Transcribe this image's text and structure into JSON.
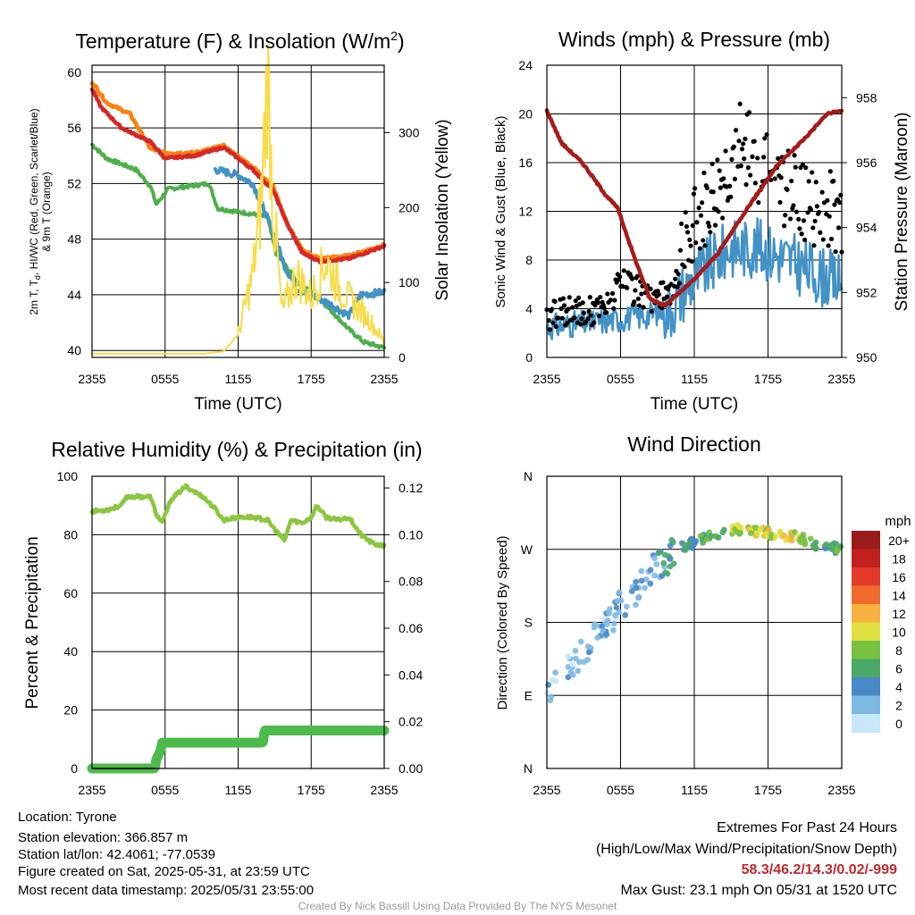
{
  "charts": {
    "temp": {
      "title": "Temperature (F) & Insolation (W/m",
      "title_sup": "2",
      "title_end": ")",
      "ylabel_lines": [
        "2m T, T",
        "d",
        ", HI/WC (Red, Green, Scarlet/Blue)",
        "& 9m T (Orange)"
      ],
      "y2label": "Solar Insolation (Yellow)",
      "xlabel": "Time (UTC)",
      "y_ticks": [
        "40",
        "44",
        "48",
        "52",
        "56",
        "60"
      ],
      "y2_ticks": [
        "0",
        "100",
        "200",
        "300"
      ]
    },
    "winds": {
      "title": "Winds (mph) & Pressure (mb)",
      "ylabel": "Sonic Wind & Gust (Blue, Black)",
      "y2label": "Station Pressure (Maroon)",
      "xlabel": "Time (UTC)",
      "y_ticks": [
        "0",
        "4",
        "8",
        "12",
        "16",
        "20",
        "24"
      ],
      "y2_ticks": [
        "950",
        "952",
        "954",
        "956",
        "958"
      ]
    },
    "rh": {
      "title": "Relative Humidity (%) & Precipitation (in)",
      "ylabel": "Percent & Precipitation",
      "y_ticks": [
        "0",
        "20",
        "40",
        "60",
        "80",
        "100"
      ],
      "y2_ticks": [
        "0.00",
        "0.02",
        "0.04",
        "0.06",
        "0.08",
        "0.10",
        "0.12"
      ]
    },
    "dir": {
      "title": "Wind Direction",
      "ylabel": "Direction (Colored By Speed)",
      "y_ticks": [
        "E",
        "S",
        "W",
        "N",
        "N"
      ],
      "legend_title": "mph",
      "legend_labels": [
        "20+",
        "18",
        "16",
        "14",
        "12",
        "10",
        "8",
        "6",
        "4",
        "2",
        "0"
      ]
    }
  },
  "x_ticks": [
    "2355",
    "0555",
    "1155",
    "1755",
    "2355"
  ],
  "chart_data": [
    {
      "type": "line",
      "x": [
        "2355",
        "0555",
        "1155",
        "1755",
        "2355"
      ],
      "ylim": [
        39.5,
        60.5
      ],
      "y2lim": [
        0,
        390
      ],
      "series": [
        {
          "color": "#d62728",
          "values": [
            58.8,
            54.8,
            54.0,
            46.3,
            47.5
          ]
        },
        {
          "color": "#ff7f0e",
          "values": [
            59.3,
            55.0,
            54.2,
            46.5,
            47.6
          ]
        },
        {
          "color": "#4daf4a",
          "values": [
            54.8,
            51.8,
            49.7,
            42.0,
            40.2
          ]
        },
        {
          "color": "#4292c6",
          "values": [
            null,
            null,
            53.0,
            43.5,
            44.2
          ]
        },
        {
          "color": "#f7dc4a",
          "values": [
            0,
            0,
            5,
            90,
            10
          ]
        }
      ]
    },
    {
      "type": "line",
      "x": [
        "2355",
        "0555",
        "1155",
        "1755",
        "2355"
      ],
      "ylim": [
        0,
        24
      ],
      "y2lim": [
        950,
        959
      ],
      "series": [
        {
          "color": "#4292c6",
          "values": [
            2.5,
            3,
            6.5,
            9,
            6
          ]
        },
        {
          "color": "#000000",
          "values": [
            3.5,
            6,
            11,
            16,
            12
          ]
        },
        {
          "color": "#a61b1b",
          "values": [
            957.5,
            954.5,
            951.7,
            955.2,
            957.5
          ]
        }
      ]
    },
    {
      "type": "line",
      "x": [
        "2355",
        "0555",
        "1155",
        "1755",
        "2355"
      ],
      "ylim": [
        0,
        100
      ],
      "y2lim": [
        0,
        0.125
      ],
      "series": [
        {
          "color": "#8cc63f",
          "values": [
            88,
            93,
            85,
            86,
            76
          ]
        },
        {
          "color": "#4cbb4c",
          "values": [
            0.0,
            0.01,
            0.01,
            0.016,
            0.016
          ]
        }
      ]
    },
    {
      "type": "scatter",
      "x": [
        "2355",
        "0555",
        "1155",
        "1755",
        "2355"
      ],
      "yticks": [
        "N",
        "E",
        "S",
        "W",
        "N"
      ],
      "legend": [
        "0",
        "2",
        "4",
        "6",
        "8",
        "10",
        "12",
        "14",
        "16",
        "18",
        "20+"
      ],
      "colors": [
        "#c6e8f8",
        "#7eb9e4",
        "#4a89c8",
        "#4aa868",
        "#78c13f",
        "#e0e040",
        "#f9b040",
        "#f06a2c",
        "#e33a2a",
        "#c21f1f",
        "#9b1b1b"
      ]
    }
  ],
  "info": {
    "location": "Location: Tyrone",
    "elevation": "Station elevation: 366.857 m",
    "latlon": "Station lat/lon: 42.4061; -77.0539",
    "created": "Figure created on Sat, 2025-05-31, at 23:59 UTC",
    "recent": "Most recent data timestamp: 2025/05/31 23:55:00"
  },
  "extremes": {
    "heading": "Extremes For Past 24 Hours",
    "subheading": "(High/Low/Max Wind/Precipitation/Snow Depth)",
    "values": "58.3/46.2/14.3/0.02/-999",
    "values_color": "#c0282d",
    "gust": "Max Gust: 23.1 mph On 05/31 at 1520 UTC"
  },
  "credit": "Created By Nick Bassill Using Data Provided By The NYS Mesonet"
}
